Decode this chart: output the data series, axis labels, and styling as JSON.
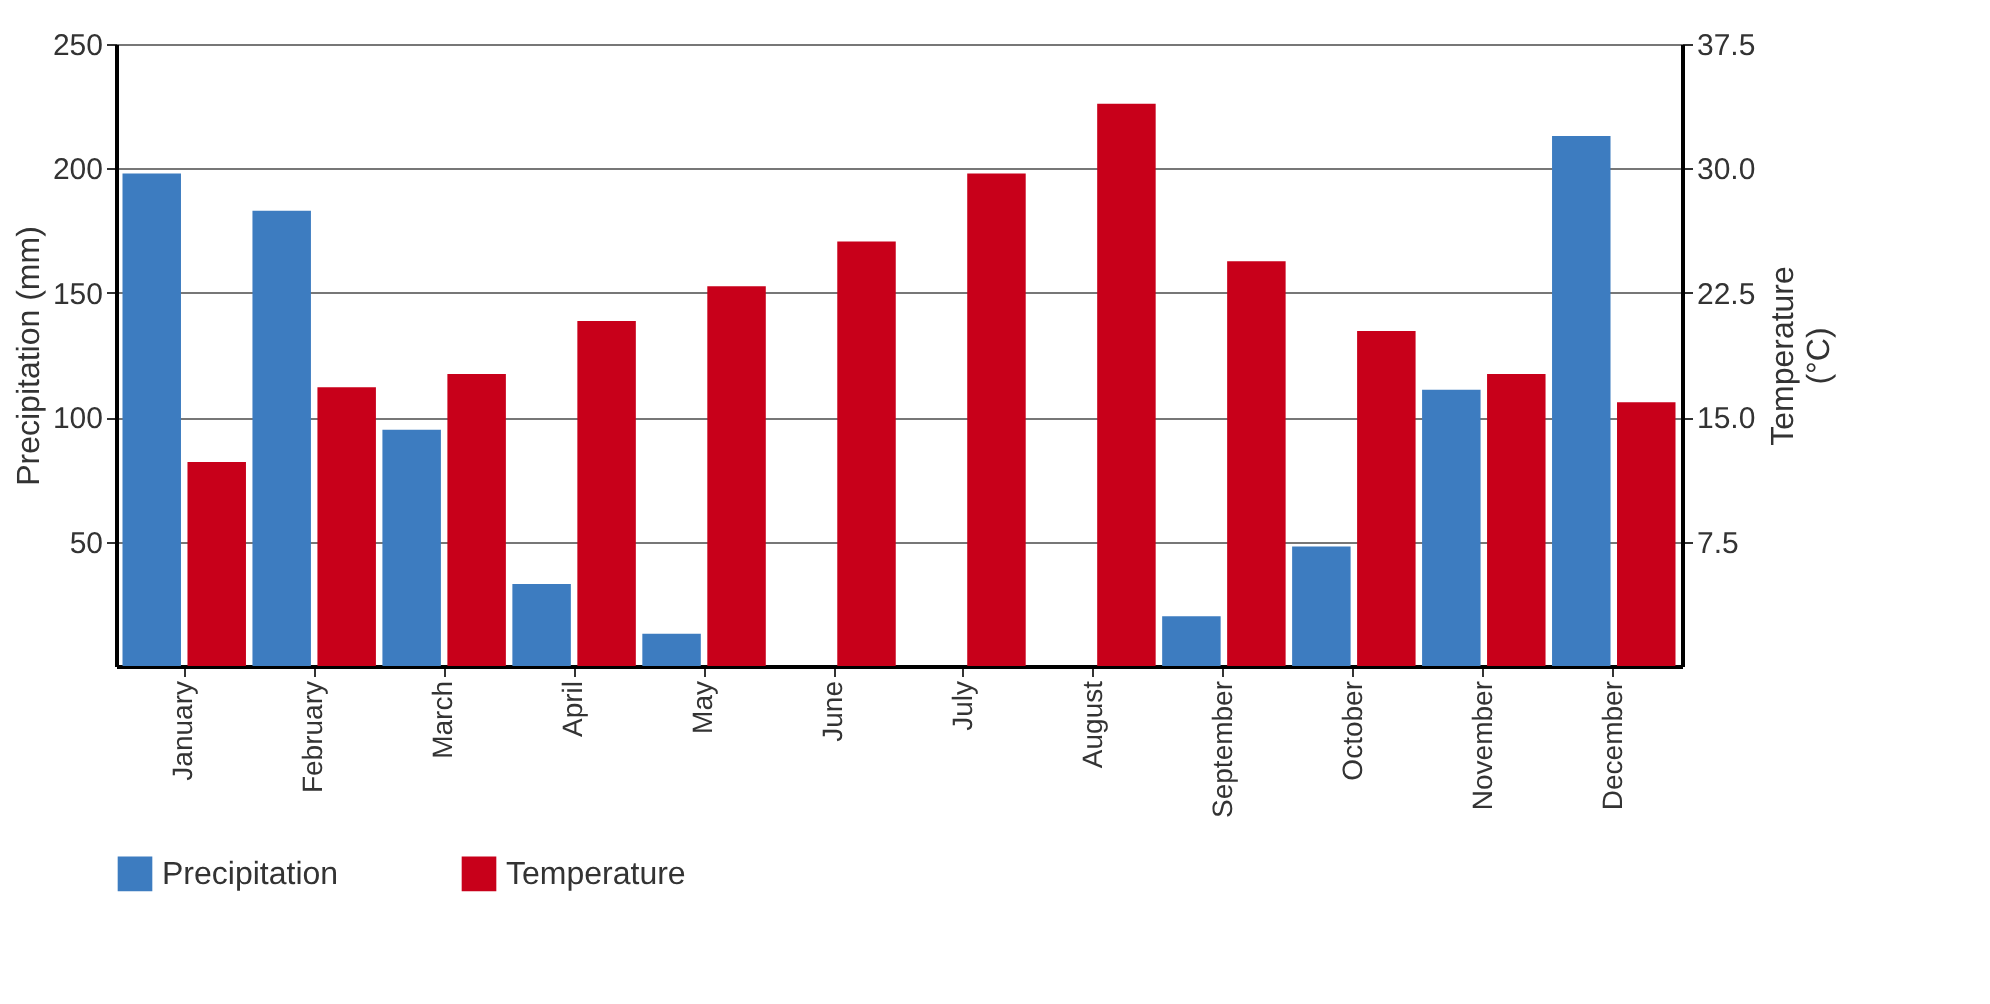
{
  "chart_data": {
    "type": "bar",
    "ylabel": "Precipitation (mm)",
    "y2label": "Temperature (°C)",
    "categories": [
      "January",
      "February",
      "March",
      "April",
      "May",
      "June",
      "July",
      "August",
      "September",
      "October",
      "November",
      "December"
    ],
    "series": [
      {
        "name": "Precipitation",
        "color": "#3d7cc0",
        "values": [
          198,
          183,
          95,
          33,
          13,
          0,
          0,
          0,
          20,
          48,
          111,
          213
        ]
      },
      {
        "name": "Temperature",
        "color": "#c8001a",
        "axis": "y2",
        "values": [
          12.3,
          16.8,
          17.6,
          20.8,
          22.9,
          25.6,
          29.7,
          33.9,
          24.4,
          20.2,
          17.6,
          15.9
        ]
      }
    ],
    "ylim": [
      0,
      250
    ],
    "yticks": [
      50,
      100,
      150,
      200,
      250
    ],
    "y2lim": [
      0,
      37.5
    ],
    "y2ticks": [
      7.5,
      {
        "value": 15,
        "label": "15.0"
      },
      {
        "value": 22.5,
        "label": "22.5"
      },
      {
        "value": 30,
        "label": "30.0"
      },
      37.5
    ],
    "grid": true,
    "legend": "bottom"
  }
}
